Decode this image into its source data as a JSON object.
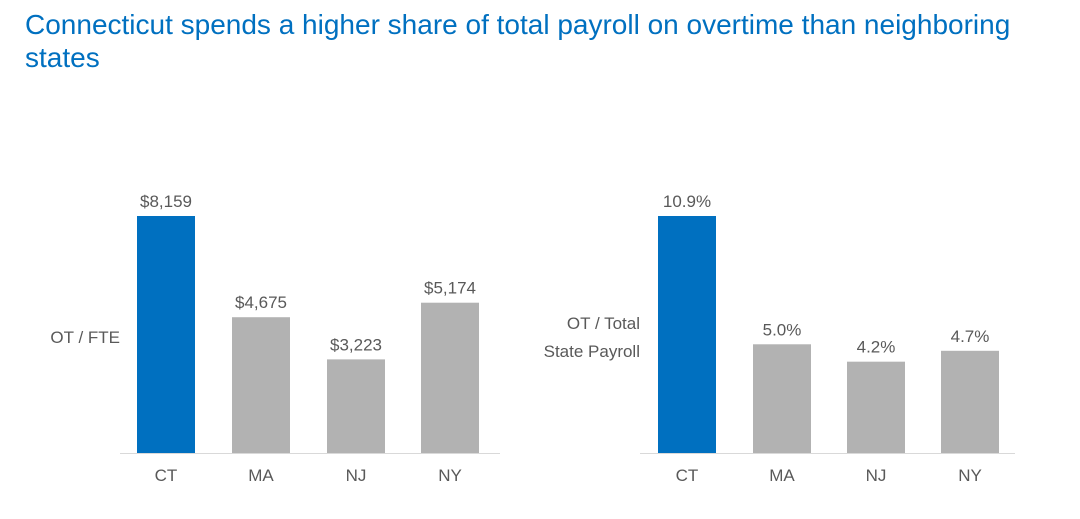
{
  "title": "Connecticut spends a higher share of total payroll on overtime than neighboring states",
  "colors": {
    "highlight": "#0070C0",
    "other": "#B2B2B2",
    "text": "#595959",
    "axis": "#D9D9D9"
  },
  "chart_data": [
    {
      "type": "bar",
      "ylabel": "OT / FTE",
      "categories": [
        "CT",
        "MA",
        "NJ",
        "NY"
      ],
      "values": [
        8159,
        4675,
        3223,
        5174
      ],
      "data_labels": [
        "$8,159",
        "$4,675",
        "$3,223",
        "$5,174"
      ],
      "highlight": "CT",
      "grid": false
    },
    {
      "type": "bar",
      "ylabel": "OT / Total State Payroll",
      "ylabel_lines": [
        "OT / Total",
        "State Payroll"
      ],
      "categories": [
        "CT",
        "MA",
        "NJ",
        "NY"
      ],
      "values": [
        10.9,
        5.0,
        4.2,
        4.7
      ],
      "data_labels": [
        "10.9%",
        "5.0%",
        "4.2%",
        "4.7%"
      ],
      "highlight": "CT",
      "grid": false
    }
  ]
}
